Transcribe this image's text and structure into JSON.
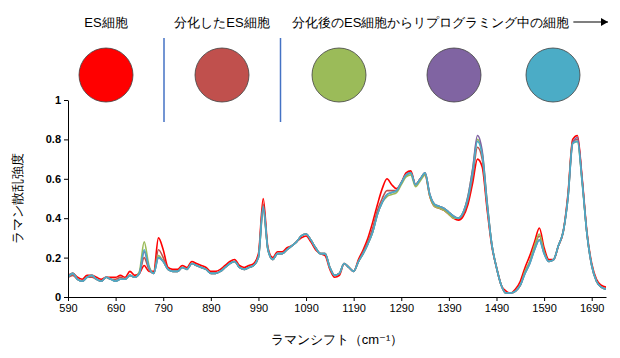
{
  "chart_data": {
    "type": "line",
    "x_label": "ラマンシフト（cm⁻¹）",
    "y_label": "ラマン散乱強度",
    "xlim": [
      590,
      1720
    ],
    "xticks": [
      590,
      690,
      790,
      890,
      990,
      1090,
      1190,
      1290,
      1390,
      1490,
      1590,
      1690
    ],
    "ylim": [
      0,
      1
    ],
    "yticks": [
      0,
      0.2,
      0.4,
      0.6,
      0.8,
      1
    ],
    "grid": false,
    "annotations": [
      {
        "text": "ES細胞",
        "series": [
          0
        ]
      },
      {
        "text": "分化したES細胞",
        "series": [
          1
        ]
      },
      {
        "text": "分化後のES細胞からリプログラミング中の細胞",
        "series": [
          2,
          3,
          4
        ]
      }
    ],
    "x": [
      590,
      600,
      610,
      620,
      630,
      640,
      650,
      660,
      670,
      680,
      690,
      700,
      710,
      720,
      730,
      740,
      750,
      760,
      770,
      780,
      790,
      800,
      810,
      820,
      830,
      840,
      850,
      860,
      870,
      880,
      890,
      900,
      910,
      920,
      930,
      940,
      950,
      960,
      970,
      980,
      990,
      1000,
      1010,
      1020,
      1030,
      1040,
      1050,
      1060,
      1070,
      1080,
      1090,
      1100,
      1110,
      1120,
      1130,
      1140,
      1150,
      1160,
      1170,
      1180,
      1190,
      1200,
      1210,
      1220,
      1230,
      1240,
      1250,
      1260,
      1270,
      1280,
      1290,
      1300,
      1310,
      1320,
      1330,
      1340,
      1350,
      1360,
      1370,
      1380,
      1390,
      1400,
      1410,
      1420,
      1430,
      1440,
      1450,
      1460,
      1470,
      1480,
      1490,
      1500,
      1510,
      1520,
      1530,
      1540,
      1550,
      1560,
      1570,
      1580,
      1590,
      1600,
      1610,
      1620,
      1630,
      1640,
      1650,
      1660,
      1670,
      1680,
      1690,
      1700,
      1710,
      1720
    ],
    "series": [
      {
        "color": "#ff0000",
        "values": [
          0.11,
          0.12,
          0.1,
          0.09,
          0.11,
          0.11,
          0.1,
          0.09,
          0.1,
          0.1,
          0.1,
          0.11,
          0.1,
          0.13,
          0.11,
          0.12,
          0.16,
          0.13,
          0.13,
          0.3,
          0.24,
          0.15,
          0.14,
          0.14,
          0.16,
          0.15,
          0.18,
          0.17,
          0.16,
          0.15,
          0.13,
          0.13,
          0.14,
          0.16,
          0.18,
          0.19,
          0.16,
          0.15,
          0.16,
          0.17,
          0.22,
          0.5,
          0.25,
          0.2,
          0.23,
          0.23,
          0.25,
          0.26,
          0.28,
          0.3,
          0.31,
          0.28,
          0.24,
          0.22,
          0.21,
          0.14,
          0.1,
          0.11,
          0.17,
          0.15,
          0.13,
          0.19,
          0.24,
          0.3,
          0.38,
          0.47,
          0.55,
          0.6,
          0.57,
          0.55,
          0.58,
          0.63,
          0.64,
          0.57,
          0.6,
          0.62,
          0.51,
          0.46,
          0.45,
          0.44,
          0.42,
          0.4,
          0.39,
          0.41,
          0.47,
          0.58,
          0.7,
          0.66,
          0.45,
          0.26,
          0.15,
          0.06,
          0.03,
          0.02,
          0.04,
          0.08,
          0.15,
          0.21,
          0.28,
          0.35,
          0.25,
          0.19,
          0.19,
          0.26,
          0.33,
          0.52,
          0.8,
          0.82,
          0.6,
          0.33,
          0.17,
          0.09,
          0.06,
          0.05
        ]
      },
      {
        "color": "#c0504d",
        "values": [
          0.1,
          0.11,
          0.09,
          0.08,
          0.1,
          0.1,
          0.09,
          0.08,
          0.1,
          0.09,
          0.09,
          0.1,
          0.09,
          0.11,
          0.1,
          0.12,
          0.2,
          0.14,
          0.12,
          0.24,
          0.2,
          0.14,
          0.13,
          0.13,
          0.15,
          0.14,
          0.17,
          0.16,
          0.15,
          0.14,
          0.12,
          0.12,
          0.13,
          0.15,
          0.17,
          0.18,
          0.15,
          0.14,
          0.15,
          0.16,
          0.21,
          0.47,
          0.24,
          0.19,
          0.22,
          0.22,
          0.24,
          0.26,
          0.28,
          0.31,
          0.32,
          0.29,
          0.25,
          0.22,
          0.22,
          0.15,
          0.11,
          0.12,
          0.17,
          0.15,
          0.13,
          0.18,
          0.23,
          0.28,
          0.35,
          0.44,
          0.5,
          0.54,
          0.54,
          0.54,
          0.58,
          0.62,
          0.63,
          0.57,
          0.6,
          0.63,
          0.52,
          0.47,
          0.46,
          0.45,
          0.43,
          0.41,
          0.4,
          0.42,
          0.49,
          0.61,
          0.76,
          0.7,
          0.47,
          0.27,
          0.15,
          0.06,
          0.02,
          0.02,
          0.03,
          0.06,
          0.13,
          0.18,
          0.26,
          0.31,
          0.23,
          0.18,
          0.19,
          0.26,
          0.33,
          0.51,
          0.79,
          0.8,
          0.59,
          0.32,
          0.16,
          0.08,
          0.05,
          0.04
        ]
      },
      {
        "color": "#9bbb59",
        "values": [
          0.1,
          0.12,
          0.09,
          0.08,
          0.1,
          0.11,
          0.09,
          0.08,
          0.1,
          0.09,
          0.08,
          0.09,
          0.09,
          0.11,
          0.1,
          0.13,
          0.28,
          0.16,
          0.12,
          0.21,
          0.18,
          0.14,
          0.13,
          0.13,
          0.15,
          0.14,
          0.17,
          0.16,
          0.15,
          0.14,
          0.12,
          0.12,
          0.13,
          0.15,
          0.17,
          0.18,
          0.15,
          0.14,
          0.15,
          0.16,
          0.2,
          0.44,
          0.24,
          0.19,
          0.22,
          0.22,
          0.24,
          0.26,
          0.28,
          0.31,
          0.32,
          0.29,
          0.25,
          0.22,
          0.22,
          0.15,
          0.11,
          0.12,
          0.17,
          0.15,
          0.13,
          0.18,
          0.22,
          0.27,
          0.33,
          0.42,
          0.48,
          0.51,
          0.52,
          0.53,
          0.57,
          0.61,
          0.62,
          0.56,
          0.59,
          0.62,
          0.51,
          0.46,
          0.45,
          0.44,
          0.42,
          0.4,
          0.4,
          0.43,
          0.51,
          0.65,
          0.8,
          0.73,
          0.49,
          0.27,
          0.15,
          0.06,
          0.02,
          0.02,
          0.03,
          0.06,
          0.13,
          0.18,
          0.26,
          0.32,
          0.23,
          0.18,
          0.19,
          0.26,
          0.33,
          0.5,
          0.78,
          0.79,
          0.58,
          0.32,
          0.16,
          0.08,
          0.05,
          0.04
        ]
      },
      {
        "color": "#8064a2",
        "values": [
          0.1,
          0.12,
          0.09,
          0.08,
          0.1,
          0.11,
          0.09,
          0.08,
          0.1,
          0.09,
          0.08,
          0.09,
          0.09,
          0.11,
          0.1,
          0.12,
          0.23,
          0.15,
          0.12,
          0.2,
          0.18,
          0.14,
          0.13,
          0.13,
          0.15,
          0.14,
          0.17,
          0.16,
          0.15,
          0.14,
          0.12,
          0.12,
          0.13,
          0.15,
          0.17,
          0.18,
          0.15,
          0.14,
          0.15,
          0.16,
          0.2,
          0.45,
          0.24,
          0.19,
          0.22,
          0.22,
          0.24,
          0.26,
          0.28,
          0.31,
          0.32,
          0.29,
          0.25,
          0.22,
          0.22,
          0.15,
          0.11,
          0.12,
          0.17,
          0.15,
          0.13,
          0.18,
          0.22,
          0.27,
          0.33,
          0.42,
          0.48,
          0.52,
          0.53,
          0.54,
          0.58,
          0.62,
          0.63,
          0.57,
          0.6,
          0.63,
          0.52,
          0.47,
          0.46,
          0.45,
          0.43,
          0.41,
          0.4,
          0.43,
          0.51,
          0.65,
          0.82,
          0.74,
          0.49,
          0.27,
          0.15,
          0.06,
          0.02,
          0.02,
          0.03,
          0.06,
          0.12,
          0.17,
          0.24,
          0.29,
          0.22,
          0.18,
          0.19,
          0.26,
          0.33,
          0.5,
          0.78,
          0.81,
          0.59,
          0.32,
          0.16,
          0.08,
          0.05,
          0.04
        ]
      },
      {
        "color": "#4bacc6",
        "values": [
          0.1,
          0.12,
          0.09,
          0.08,
          0.1,
          0.11,
          0.09,
          0.08,
          0.1,
          0.09,
          0.08,
          0.09,
          0.09,
          0.11,
          0.1,
          0.12,
          0.24,
          0.15,
          0.12,
          0.2,
          0.18,
          0.14,
          0.13,
          0.13,
          0.15,
          0.14,
          0.17,
          0.16,
          0.15,
          0.14,
          0.12,
          0.12,
          0.13,
          0.15,
          0.17,
          0.18,
          0.15,
          0.14,
          0.15,
          0.16,
          0.2,
          0.46,
          0.24,
          0.19,
          0.22,
          0.22,
          0.24,
          0.26,
          0.28,
          0.31,
          0.32,
          0.29,
          0.25,
          0.22,
          0.22,
          0.15,
          0.11,
          0.12,
          0.17,
          0.15,
          0.13,
          0.18,
          0.22,
          0.27,
          0.33,
          0.42,
          0.48,
          0.52,
          0.53,
          0.54,
          0.58,
          0.62,
          0.63,
          0.57,
          0.6,
          0.63,
          0.52,
          0.47,
          0.46,
          0.45,
          0.43,
          0.41,
          0.4,
          0.43,
          0.5,
          0.63,
          0.79,
          0.72,
          0.48,
          0.27,
          0.15,
          0.06,
          0.02,
          0.02,
          0.03,
          0.06,
          0.12,
          0.17,
          0.24,
          0.29,
          0.22,
          0.18,
          0.19,
          0.26,
          0.33,
          0.5,
          0.78,
          0.79,
          0.58,
          0.32,
          0.16,
          0.08,
          0.05,
          0.04
        ]
      }
    ]
  }
}
